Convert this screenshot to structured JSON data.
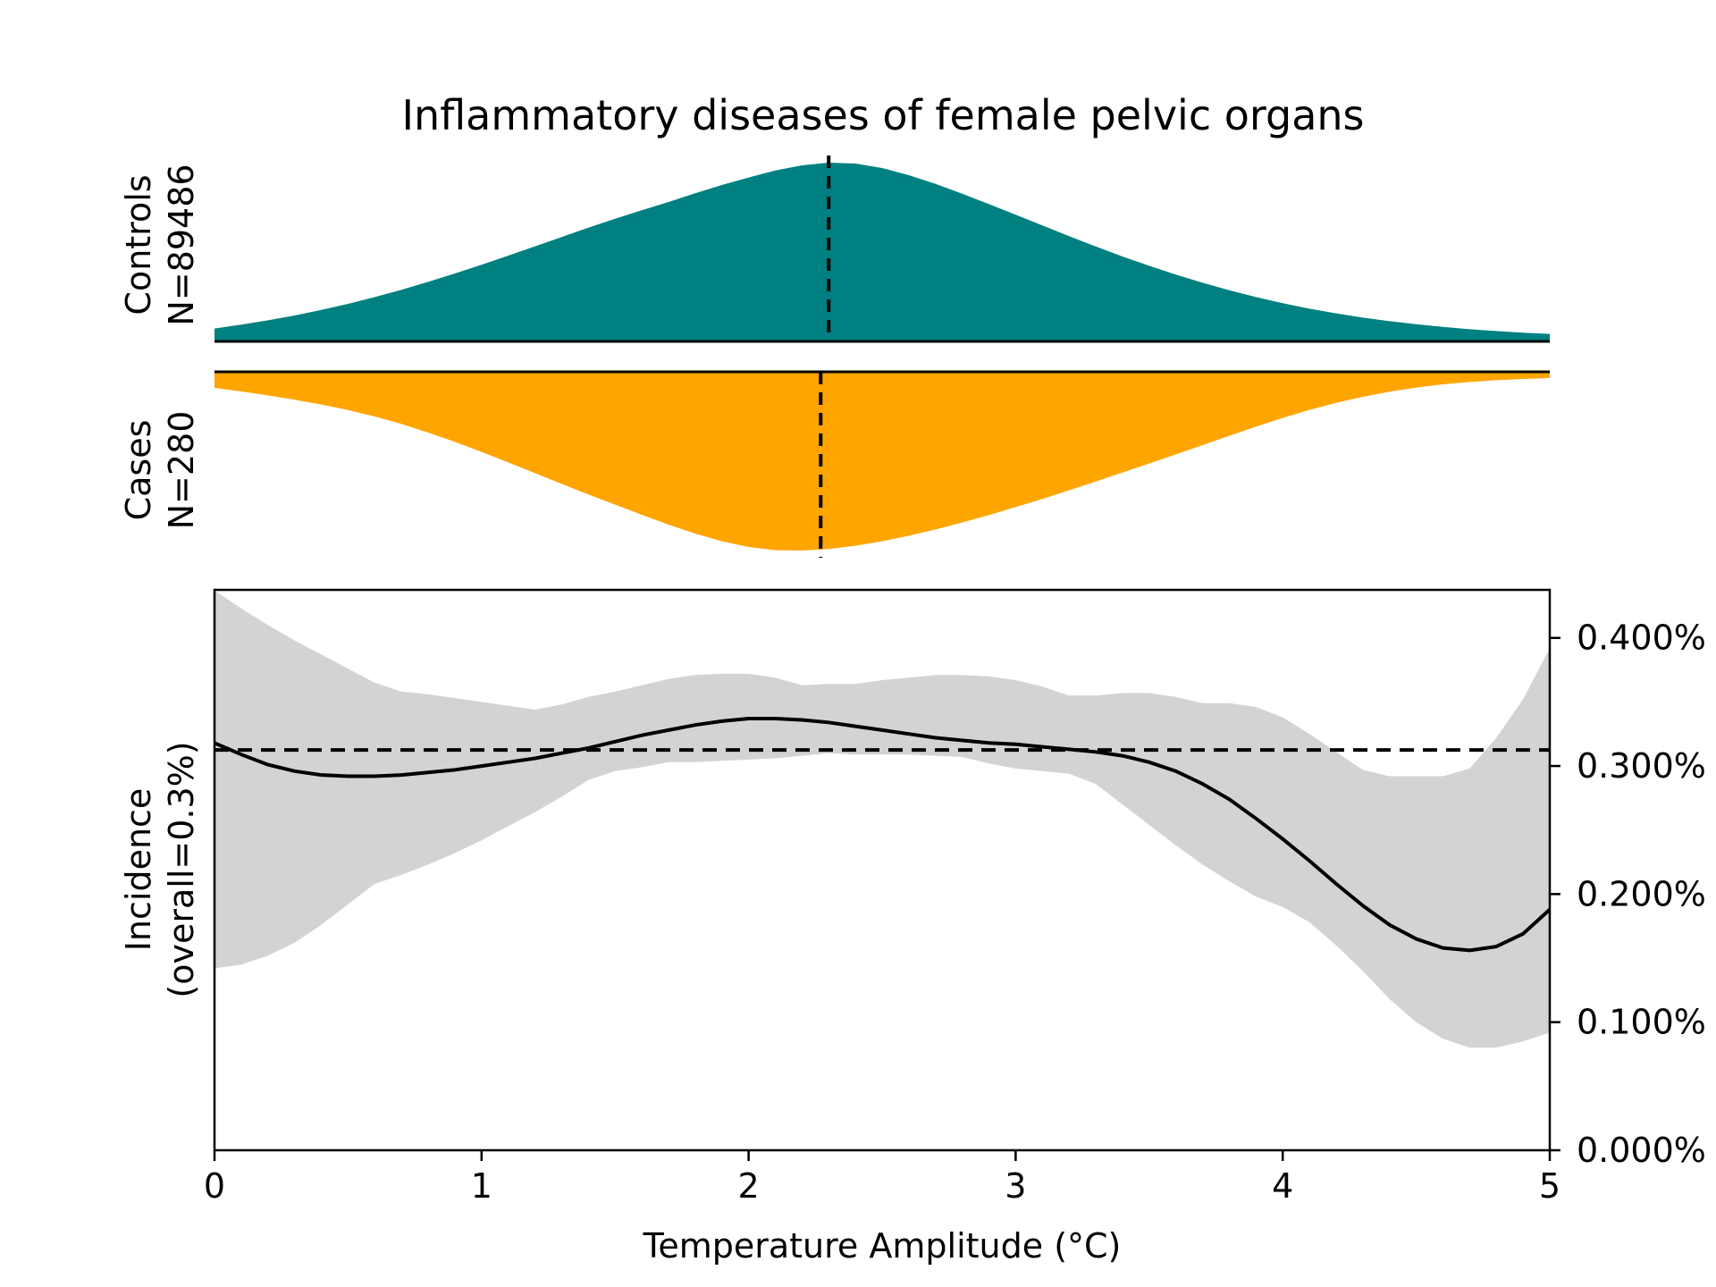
{
  "colors": {
    "controls_fill": "#008080",
    "cases_fill": "#FFA500",
    "ci_band": "#D3D3D3",
    "line": "#000000"
  },
  "chart_data": {
    "title": "Inflammatory diseases of female pelvic organs",
    "x_axis": {
      "label": "Temperature Amplitude (°C)",
      "lim": [
        0,
        5
      ],
      "ticks": [
        0,
        1,
        2,
        3,
        4,
        5
      ],
      "tick_labels": [
        "0",
        "1",
        "2",
        "3",
        "4",
        "5"
      ]
    },
    "panels": [
      {
        "type": "area",
        "id": "controls",
        "label_line1": "Controls",
        "label_line2": "N=89486",
        "direction": "up",
        "median_x": 2.3,
        "x": [
          0,
          0.1,
          0.2,
          0.3,
          0.4,
          0.5,
          0.6,
          0.7,
          0.8,
          0.9,
          1.0,
          1.1,
          1.2,
          1.3,
          1.4,
          1.5,
          1.6,
          1.7,
          1.8,
          1.9,
          2.0,
          2.1,
          2.2,
          2.3,
          2.4,
          2.5,
          2.6,
          2.7,
          2.8,
          2.9,
          3.0,
          3.1,
          3.2,
          3.3,
          3.4,
          3.5,
          3.6,
          3.7,
          3.8,
          3.9,
          4.0,
          4.1,
          4.2,
          4.3,
          4.4,
          4.5,
          4.6,
          4.7,
          4.8,
          4.9,
          5.0
        ],
        "density": [
          0.072,
          0.094,
          0.118,
          0.145,
          0.176,
          0.21,
          0.248,
          0.289,
          0.333,
          0.38,
          0.429,
          0.48,
          0.532,
          0.584,
          0.636,
          0.686,
          0.734,
          0.78,
          0.829,
          0.875,
          0.917,
          0.956,
          0.985,
          1.0,
          0.995,
          0.97,
          0.93,
          0.881,
          0.826,
          0.768,
          0.709,
          0.649,
          0.589,
          0.531,
          0.475,
          0.423,
          0.374,
          0.328,
          0.286,
          0.248,
          0.214,
          0.183,
          0.157,
          0.133,
          0.113,
          0.096,
          0.081,
          0.068,
          0.058,
          0.049,
          0.042
        ]
      },
      {
        "type": "area",
        "id": "cases",
        "label_line1": "Cases",
        "label_line2": "N=280",
        "direction": "down",
        "median_x": 2.27,
        "x": [
          0,
          0.1,
          0.2,
          0.3,
          0.4,
          0.5,
          0.6,
          0.7,
          0.8,
          0.9,
          1.0,
          1.1,
          1.2,
          1.3,
          1.4,
          1.5,
          1.6,
          1.7,
          1.8,
          1.9,
          2.0,
          2.1,
          2.2,
          2.3,
          2.4,
          2.5,
          2.6,
          2.7,
          2.8,
          2.9,
          3.0,
          3.1,
          3.2,
          3.3,
          3.4,
          3.5,
          3.6,
          3.7,
          3.8,
          3.9,
          4.0,
          4.1,
          4.2,
          4.3,
          4.4,
          4.5,
          4.6,
          4.7,
          4.8,
          4.9,
          5.0
        ],
        "density": [
          0.09,
          0.11,
          0.132,
          0.156,
          0.183,
          0.214,
          0.25,
          0.292,
          0.34,
          0.392,
          0.448,
          0.507,
          0.567,
          0.627,
          0.686,
          0.743,
          0.8,
          0.855,
          0.905,
          0.948,
          0.98,
          0.998,
          1.0,
          0.991,
          0.973,
          0.948,
          0.917,
          0.882,
          0.843,
          0.801,
          0.757,
          0.711,
          0.663,
          0.614,
          0.564,
          0.513,
          0.462,
          0.41,
          0.358,
          0.307,
          0.258,
          0.213,
          0.174,
          0.14,
          0.111,
          0.088,
          0.07,
          0.057,
          0.047,
          0.04,
          0.035
        ]
      },
      {
        "type": "line",
        "id": "incidence",
        "ylabel_line1": "Incidence",
        "ylabel_line2": "(overall=0.3%)",
        "ylim": [
          0,
          0.4375
        ],
        "y_ticks": [
          0,
          0.1,
          0.2,
          0.3,
          0.4
        ],
        "y_tick_labels": [
          "0.000%",
          "0.100%",
          "0.200%",
          "0.300%",
          "0.400%"
        ],
        "y_axis_side": "right",
        "overall": 0.3125,
        "x": [
          0,
          0.1,
          0.2,
          0.3,
          0.4,
          0.5,
          0.6,
          0.7,
          0.8,
          0.9,
          1.0,
          1.1,
          1.2,
          1.3,
          1.4,
          1.5,
          1.6,
          1.7,
          1.8,
          1.9,
          2.0,
          2.1,
          2.2,
          2.3,
          2.4,
          2.5,
          2.6,
          2.7,
          2.8,
          2.9,
          3.0,
          3.1,
          3.2,
          3.3,
          3.4,
          3.5,
          3.6,
          3.7,
          3.8,
          3.9,
          4.0,
          4.1,
          4.2,
          4.3,
          4.4,
          4.5,
          4.6,
          4.7,
          4.8,
          4.9,
          5.0
        ],
        "y": [
          0.318,
          0.309,
          0.301,
          0.296,
          0.293,
          0.292,
          0.292,
          0.293,
          0.295,
          0.297,
          0.3,
          0.303,
          0.306,
          0.31,
          0.314,
          0.319,
          0.324,
          0.328,
          0.332,
          0.335,
          0.337,
          0.337,
          0.336,
          0.334,
          0.331,
          0.328,
          0.325,
          0.322,
          0.32,
          0.318,
          0.317,
          0.315,
          0.313,
          0.311,
          0.308,
          0.303,
          0.296,
          0.286,
          0.274,
          0.259,
          0.243,
          0.226,
          0.208,
          0.191,
          0.176,
          0.165,
          0.158,
          0.156,
          0.159,
          0.169,
          0.188
        ],
        "ci_lower": [
          0.142,
          0.145,
          0.152,
          0.162,
          0.176,
          0.192,
          0.208,
          0.215,
          0.223,
          0.232,
          0.242,
          0.253,
          0.264,
          0.276,
          0.289,
          0.296,
          0.299,
          0.303,
          0.303,
          0.304,
          0.305,
          0.306,
          0.308,
          0.31,
          0.309,
          0.309,
          0.309,
          0.308,
          0.307,
          0.302,
          0.298,
          0.296,
          0.294,
          0.286,
          0.27,
          0.254,
          0.238,
          0.223,
          0.21,
          0.198,
          0.19,
          0.178,
          0.16,
          0.14,
          0.118,
          0.1,
          0.087,
          0.08,
          0.08,
          0.085,
          0.092
        ],
        "ci_upper": [
          0.437,
          0.423,
          0.41,
          0.398,
          0.387,
          0.376,
          0.365,
          0.358,
          0.356,
          0.353,
          0.35,
          0.347,
          0.344,
          0.348,
          0.354,
          0.358,
          0.363,
          0.368,
          0.371,
          0.372,
          0.372,
          0.369,
          0.363,
          0.364,
          0.364,
          0.367,
          0.369,
          0.371,
          0.371,
          0.37,
          0.367,
          0.362,
          0.355,
          0.355,
          0.357,
          0.357,
          0.354,
          0.349,
          0.349,
          0.346,
          0.338,
          0.325,
          0.311,
          0.297,
          0.292,
          0.292,
          0.292,
          0.298,
          0.322,
          0.352,
          0.392
        ]
      }
    ]
  }
}
